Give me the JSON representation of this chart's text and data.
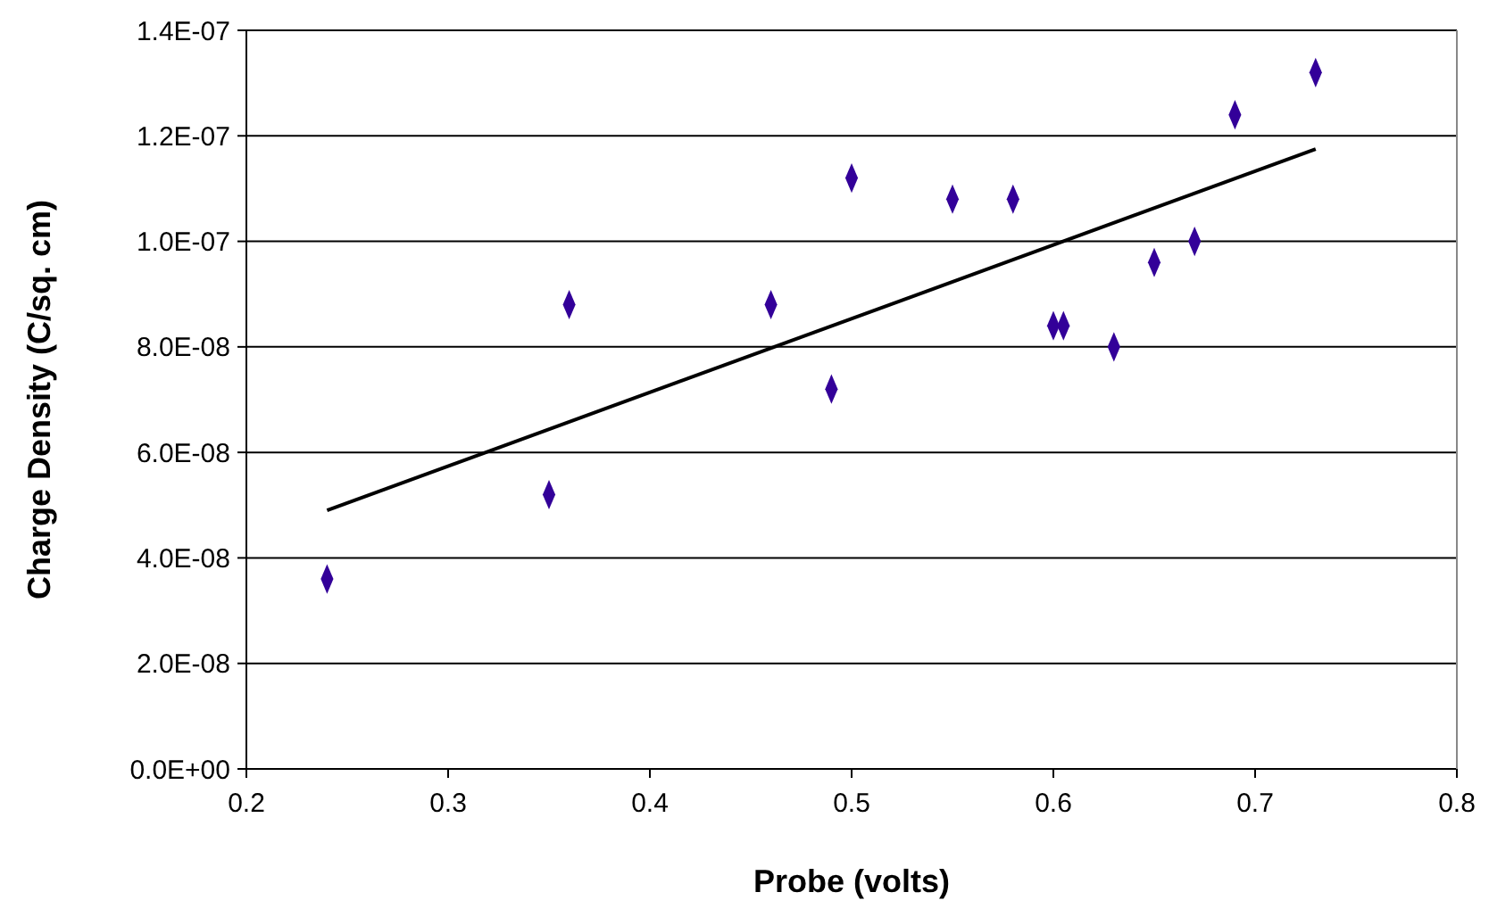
{
  "chart_data": {
    "type": "scatter",
    "xlabel": "Probe (volts)",
    "ylabel": "Charge Density (C/sq. cm)",
    "xlim": [
      0.2,
      0.8
    ],
    "xticks": [
      0.2,
      0.3,
      0.4,
      0.5,
      0.6,
      0.7,
      0.8
    ],
    "ylim": [
      0,
      1.4e-07
    ],
    "yticks": [
      {
        "value": 0,
        "label": "0.0E+00"
      },
      {
        "value": 2e-08,
        "label": "2.0E-08"
      },
      {
        "value": 4e-08,
        "label": "4.0E-08"
      },
      {
        "value": 6e-08,
        "label": "6.0E-08"
      },
      {
        "value": 8e-08,
        "label": "8.0E-08"
      },
      {
        "value": 1e-07,
        "label": "1.0E-07"
      },
      {
        "value": 1.2e-07,
        "label": "1.2E-07"
      },
      {
        "value": 1.4e-07,
        "label": "1.4E-07"
      }
    ],
    "grid": "y",
    "series": [
      {
        "color": "#330099",
        "marker": "diamond",
        "x": [
          0.24,
          0.35,
          0.36,
          0.46,
          0.49,
          0.5,
          0.55,
          0.58,
          0.6,
          0.605,
          0.63,
          0.65,
          0.67,
          0.69,
          0.73
        ],
        "values": [
          3.6e-08,
          5.2e-08,
          8.8e-08,
          8.8e-08,
          7.2e-08,
          1.12e-07,
          1.08e-07,
          1.08e-07,
          8.4e-08,
          8.4e-08,
          8e-08,
          9.6e-08,
          1e-07,
          1.24e-07,
          1.32e-07
        ]
      },
      {
        "type": "line",
        "color": "#000000",
        "marker": "none",
        "line_style": "solid",
        "x": [
          0.24,
          0.73
        ],
        "values": [
          4.9e-08,
          1.175e-07
        ]
      }
    ]
  }
}
